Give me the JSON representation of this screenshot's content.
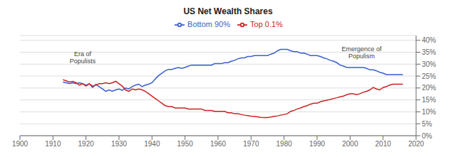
{
  "chart_data": {
    "type": "line",
    "title": "US Net Wealth Shares",
    "x": [
      1913,
      1914,
      1915,
      1916,
      1917,
      1918,
      1919,
      1920,
      1921,
      1922,
      1923,
      1924,
      1925,
      1926,
      1927,
      1928,
      1929,
      1930,
      1931,
      1932,
      1933,
      1934,
      1935,
      1936,
      1937,
      1938,
      1939,
      1940,
      1941,
      1942,
      1943,
      1944,
      1945,
      1946,
      1947,
      1948,
      1949,
      1950,
      1951,
      1952,
      1953,
      1954,
      1955,
      1956,
      1957,
      1958,
      1959,
      1960,
      1961,
      1962,
      1963,
      1964,
      1965,
      1966,
      1967,
      1968,
      1969,
      1970,
      1971,
      1972,
      1973,
      1974,
      1975,
      1976,
      1977,
      1978,
      1979,
      1980,
      1981,
      1982,
      1983,
      1984,
      1985,
      1986,
      1987,
      1988,
      1989,
      1990,
      1991,
      1992,
      1993,
      1994,
      1995,
      1996,
      1997,
      1998,
      1999,
      2000,
      2001,
      2002,
      2003,
      2004,
      2005,
      2006,
      2007,
      2008,
      2009,
      2010,
      2011,
      2012,
      2013,
      2014,
      2015,
      2016
    ],
    "series": [
      {
        "name": "Bottom 90%",
        "color": "#3a5fcd",
        "values": [
          0.225,
          0.222,
          0.218,
          0.222,
          0.218,
          0.222,
          0.218,
          0.212,
          0.218,
          0.202,
          0.215,
          0.205,
          0.196,
          0.186,
          0.192,
          0.186,
          0.192,
          0.196,
          0.19,
          0.2,
          0.196,
          0.206,
          0.212,
          0.216,
          0.206,
          0.212,
          0.216,
          0.222,
          0.238,
          0.252,
          0.262,
          0.272,
          0.278,
          0.278,
          0.282,
          0.286,
          0.282,
          0.286,
          0.292,
          0.296,
          0.296,
          0.296,
          0.296,
          0.296,
          0.296,
          0.296,
          0.302,
          0.302,
          0.302,
          0.306,
          0.306,
          0.312,
          0.316,
          0.322,
          0.326,
          0.326,
          0.332,
          0.332,
          0.336,
          0.336,
          0.336,
          0.336,
          0.336,
          0.342,
          0.346,
          0.356,
          0.362,
          0.362,
          0.362,
          0.356,
          0.352,
          0.352,
          0.346,
          0.346,
          0.342,
          0.336,
          0.336,
          0.336,
          0.332,
          0.326,
          0.322,
          0.316,
          0.312,
          0.306,
          0.296,
          0.292,
          0.286,
          0.286,
          0.286,
          0.286,
          0.286,
          0.286,
          0.282,
          0.276,
          0.276,
          0.272,
          0.266,
          0.262,
          0.256,
          0.256,
          0.256,
          0.256,
          0.256,
          0.256
        ]
      },
      {
        "name": "Top 0.1%",
        "color": "#cc2222",
        "values": [
          0.235,
          0.23,
          0.225,
          0.228,
          0.222,
          0.212,
          0.218,
          0.208,
          0.218,
          0.208,
          0.212,
          0.218,
          0.218,
          0.222,
          0.218,
          0.222,
          0.228,
          0.218,
          0.208,
          0.192,
          0.186,
          0.196,
          0.192,
          0.196,
          0.192,
          0.186,
          0.176,
          0.166,
          0.156,
          0.146,
          0.136,
          0.126,
          0.122,
          0.122,
          0.116,
          0.116,
          0.116,
          0.116,
          0.112,
          0.112,
          0.112,
          0.112,
          0.112,
          0.106,
          0.106,
          0.106,
          0.102,
          0.102,
          0.102,
          0.102,
          0.096,
          0.096,
          0.092,
          0.092,
          0.089,
          0.086,
          0.084,
          0.082,
          0.081,
          0.079,
          0.077,
          0.076,
          0.076,
          0.078,
          0.081,
          0.083,
          0.086,
          0.089,
          0.092,
          0.102,
          0.106,
          0.112,
          0.116,
          0.122,
          0.126,
          0.132,
          0.136,
          0.136,
          0.142,
          0.146,
          0.149,
          0.152,
          0.156,
          0.159,
          0.163,
          0.166,
          0.172,
          0.176,
          0.176,
          0.172,
          0.176,
          0.182,
          0.186,
          0.192,
          0.202,
          0.196,
          0.192,
          0.202,
          0.206,
          0.212,
          0.216,
          0.216,
          0.216,
          0.216
        ]
      }
    ],
    "xlim": [
      1900,
      2020
    ],
    "xticks": [
      1900,
      1910,
      1920,
      1930,
      1940,
      1950,
      1960,
      1970,
      1980,
      1990,
      2000,
      2010,
      2020
    ],
    "ylim": [
      0.0,
      0.42
    ],
    "yticks": [
      {
        "value": 0.0,
        "label": "0%"
      },
      {
        "value": 0.05,
        "label": "5%"
      },
      {
        "value": 0.1,
        "label": "10%"
      },
      {
        "value": 0.15,
        "label": "15%"
      },
      {
        "value": 0.2,
        "label": "20%"
      },
      {
        "value": 0.25,
        "label": "25%"
      },
      {
        "value": 0.3,
        "label": "30%"
      },
      {
        "value": 0.35,
        "label": "35%"
      },
      {
        "value": 0.4,
        "label": "40%"
      }
    ],
    "grid": true,
    "legend": "top",
    "annotations": [
      {
        "text": "Era of\nPopulists",
        "x": 1919,
        "y": 0.295
      },
      {
        "text": "Emergence of\nPopulism",
        "x": 2003.5,
        "y": 0.315
      }
    ]
  }
}
